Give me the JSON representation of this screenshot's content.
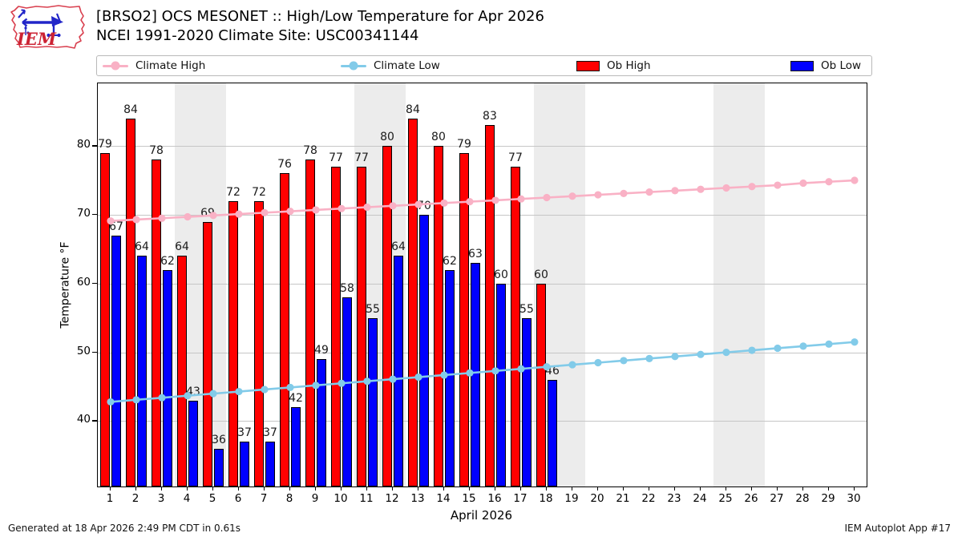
{
  "header": {
    "logo_text": "IEM",
    "title_line1": "[BRSO2] OCS MESONET :: High/Low Temperature for Apr 2026",
    "title_line2": "NCEI 1991-2020 Climate Site: USC00341144"
  },
  "legend": {
    "items": [
      {
        "label": "Climate High",
        "swatch": "line",
        "color": "#f9b1c5"
      },
      {
        "label": "Climate Low",
        "swatch": "line",
        "color": "#82cbe9"
      },
      {
        "label": "Ob High",
        "swatch": "patch",
        "color": "#ff0000"
      },
      {
        "label": "Ob Low",
        "swatch": "patch",
        "color": "#0000ff"
      }
    ]
  },
  "chart_data": {
    "type": "bar",
    "title": "[BRSO2] OCS MESONET :: High/Low Temperature for Apr 2026",
    "subtitle": "NCEI 1991-2020 Climate Site: USC00341144",
    "xlabel": "April 2026",
    "ylabel": "Temperature °F",
    "xlim": [
      0.5,
      30.47
    ],
    "ylim": [
      30.5,
      89.1
    ],
    "yticks": [
      40,
      50,
      60,
      70,
      80
    ],
    "xticks": [
      1,
      2,
      3,
      4,
      5,
      6,
      7,
      8,
      9,
      10,
      11,
      12,
      13,
      14,
      15,
      16,
      17,
      18,
      19,
      20,
      21,
      22,
      23,
      24,
      25,
      26,
      27,
      28,
      29,
      30
    ],
    "grid": "horizontal-only",
    "legend_position": "top",
    "weekend_shading": {
      "color": "#ececec",
      "spans": [
        [
          3.5,
          5.5
        ],
        [
          10.5,
          12.5
        ],
        [
          17.5,
          19.5
        ],
        [
          24.5,
          26.5
        ]
      ]
    },
    "series": [
      {
        "name": "Climate High",
        "type": "line",
        "color": "#f9b1c5",
        "days": [
          1,
          2,
          3,
          4,
          5,
          6,
          7,
          8,
          9,
          10,
          11,
          12,
          13,
          14,
          15,
          16,
          17,
          18,
          19,
          20,
          21,
          22,
          23,
          24,
          25,
          26,
          27,
          28,
          29,
          30
        ],
        "values": [
          69.1,
          69.3,
          69.5,
          69.7,
          69.9,
          70.1,
          70.3,
          70.5,
          70.7,
          70.9,
          71.1,
          71.3,
          71.5,
          71.7,
          71.9,
          72.1,
          72.3,
          72.5,
          72.7,
          72.9,
          73.1,
          73.3,
          73.5,
          73.7,
          73.9,
          74.1,
          74.3,
          74.6,
          74.8,
          75.0
        ]
      },
      {
        "name": "Climate Low",
        "type": "line",
        "color": "#82cbe9",
        "days": [
          1,
          2,
          3,
          4,
          5,
          6,
          7,
          8,
          9,
          10,
          11,
          12,
          13,
          14,
          15,
          16,
          17,
          18,
          19,
          20,
          21,
          22,
          23,
          24,
          25,
          26,
          27,
          28,
          29,
          30
        ],
        "values": [
          42.8,
          43.1,
          43.4,
          43.7,
          44.0,
          44.3,
          44.6,
          44.9,
          45.2,
          45.5,
          45.8,
          46.1,
          46.4,
          46.7,
          47.0,
          47.3,
          47.6,
          47.9,
          48.2,
          48.5,
          48.8,
          49.1,
          49.4,
          49.7,
          50.0,
          50.3,
          50.6,
          50.9,
          51.2,
          51.5
        ]
      },
      {
        "name": "Ob High",
        "type": "bar",
        "color": "#ff0000",
        "value_labels": true,
        "days": [
          1,
          2,
          3,
          4,
          5,
          6,
          7,
          8,
          9,
          10,
          11,
          12,
          13,
          14,
          15,
          16,
          17,
          18
        ],
        "values": [
          79,
          84,
          78,
          64,
          69,
          72,
          72,
          76,
          78,
          77,
          77,
          80,
          84,
          80,
          79,
          83,
          77,
          60
        ]
      },
      {
        "name": "Ob Low",
        "type": "bar",
        "color": "#0000ff",
        "value_labels": true,
        "days": [
          1,
          2,
          3,
          4,
          5,
          6,
          7,
          8,
          9,
          10,
          11,
          12,
          13,
          14,
          15,
          16,
          17,
          18
        ],
        "values": [
          67,
          64,
          62,
          43,
          36,
          37,
          37,
          42,
          49,
          58,
          55,
          64,
          70,
          62,
          63,
          60,
          55,
          46
        ]
      }
    ]
  },
  "footer": {
    "left": "Generated at 18 Apr 2026 2:49 PM CDT in 0.61s",
    "right": "IEM Autoplot App #17"
  }
}
